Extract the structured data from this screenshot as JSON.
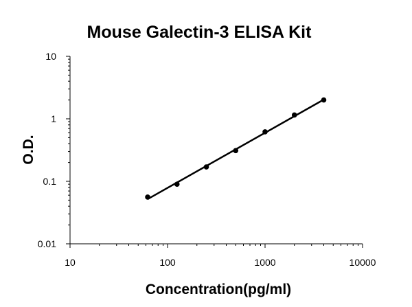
{
  "chart_data": {
    "type": "scatter",
    "title": "Mouse Galectin-3  ELISA Kit",
    "xlabel": "Concentration(pg/ml)",
    "ylabel": "O.D.",
    "xscale": "log",
    "yscale": "log",
    "xlim": [
      10,
      10000
    ],
    "ylim": [
      0.01,
      10
    ],
    "xticks": [
      10,
      100,
      1000,
      10000
    ],
    "xtick_labels": [
      "10",
      "100",
      "1000",
      "10000"
    ],
    "yticks": [
      0.01,
      0.1,
      1,
      10
    ],
    "ytick_labels": [
      "0.01",
      "0.1",
      "1",
      "10"
    ],
    "grid": false,
    "series": [
      {
        "x": [
          62.5,
          125,
          250,
          500,
          1000,
          2000,
          4000
        ],
        "y": [
          0.056,
          0.09,
          0.17,
          0.31,
          0.62,
          1.15,
          2.0
        ],
        "marker": "circle",
        "fit_line": true,
        "color": "#000000"
      }
    ]
  }
}
